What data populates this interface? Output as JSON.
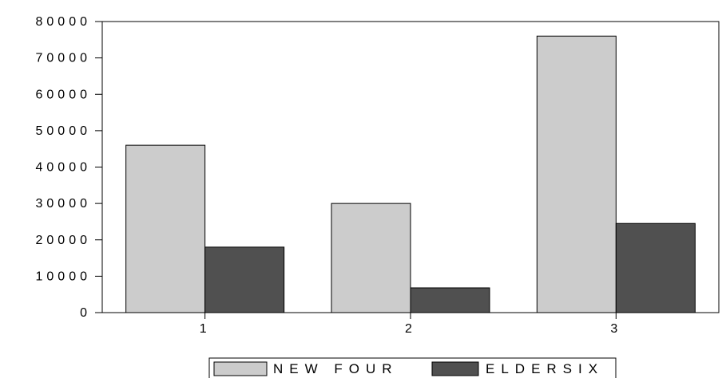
{
  "chart_data": {
    "type": "bar",
    "categories": [
      "1",
      "2",
      "3"
    ],
    "series": [
      {
        "name": "NEW FOUR",
        "values": [
          46000,
          30000,
          76000
        ],
        "color": "#cccccc"
      },
      {
        "name": "ELDERSIX",
        "values": [
          18000,
          6800,
          24500
        ],
        "color": "#505050"
      }
    ],
    "ylim": [
      0,
      80000
    ],
    "yticks": [
      0,
      10000,
      20000,
      30000,
      40000,
      50000,
      60000,
      70000,
      80000
    ],
    "ytick_labels": [
      "0",
      "10000",
      "20000",
      "30000",
      "40000",
      "50000",
      "60000",
      "70000",
      "80000"
    ],
    "grid": false,
    "legend_position": "bottom"
  }
}
